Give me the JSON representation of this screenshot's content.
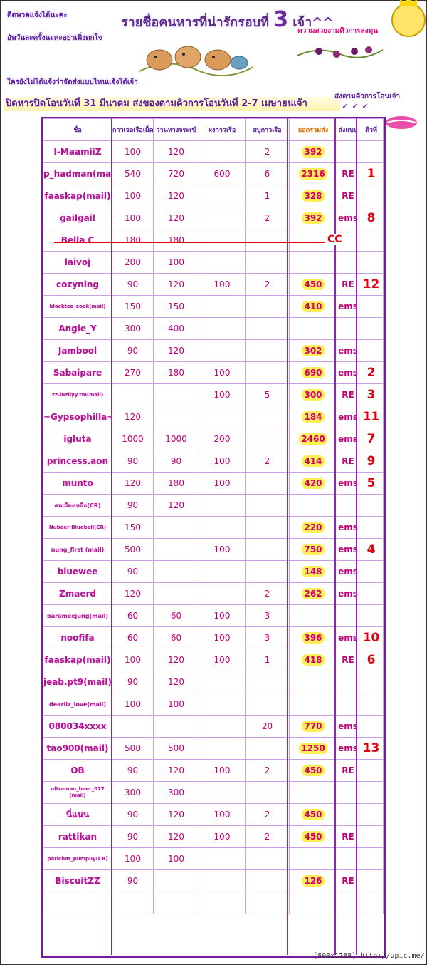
{
  "notes": {
    "line1": "ติดพวดแจ้งได้นะคะ",
    "line2": "อัพวันละครั้งนะคะอย่าเพิ่งตกใจ",
    "line3": "ใครยังไม่ได้แจ้งว่าจัดส่งแบบไหนแจ้งได้เจ้า"
  },
  "title": {
    "pre": "รายชื่อคนหารที่น่ารักรอบที่",
    "num": "3",
    "post": "เจ้า^^"
  },
  "contest_label": "ความสวยงามคิวการลงทุน",
  "contest_label2": "ส่งตามคิวการโอนเจ้า",
  "checkmarks": "✓✓✓",
  "banner": "ปิดหารปิดโอนวันที่ 31 มีนาคม ส่งของตามคิวการโอนวันที่ 2-7 เมษายนเจ้า",
  "headers": [
    "ชื่อ",
    "กาวเจลเรือเม็ด",
    "ว่านหางจระเข้",
    "ผงกาวเรือ",
    "สบู่กาวเรือ",
    "ยอดรวมส่ง",
    "ส่งแบบ",
    "คิวที่"
  ],
  "rows": [
    {
      "name": "I-MaamiiZ",
      "c1": "100",
      "c2": "120",
      "c3": "",
      "c4": "2",
      "total": "392",
      "ship": "",
      "rank": ""
    },
    {
      "name": "p_hadman(mail)",
      "c1": "540",
      "c2": "720",
      "c3": "600",
      "c4": "6",
      "total": "2316",
      "ship": "RE",
      "rank": "1"
    },
    {
      "name": "faaskap(mail)",
      "c1": "100",
      "c2": "120",
      "c3": "",
      "c4": "1",
      "total": "328",
      "ship": "RE",
      "rank": ""
    },
    {
      "name": "gailgail",
      "c1": "100",
      "c2": "120",
      "c3": "",
      "c4": "2",
      "total": "392",
      "ship": "ems",
      "rank": "8"
    },
    {
      "name": "Bella C",
      "c1": "180",
      "c2": "180",
      "c3": "",
      "c4": "",
      "total": "",
      "ship": "",
      "rank": ""
    },
    {
      "name": "laivoj",
      "c1": "200",
      "c2": "100",
      "c3": "",
      "c4": "",
      "total": "",
      "ship": "",
      "rank": ""
    },
    {
      "name": "cozyning",
      "c1": "90",
      "c2": "120",
      "c3": "100",
      "c4": "2",
      "total": "450",
      "ship": "RE",
      "rank": "12"
    },
    {
      "name": "blacktea_cook(mail)",
      "c1": "150",
      "c2": "150",
      "c3": "",
      "c4": "",
      "total": "410",
      "ship": "ems",
      "rank": ""
    },
    {
      "name": "Angle_Y",
      "c1": "300",
      "c2": "400",
      "c3": "",
      "c4": "",
      "total": "",
      "ship": "",
      "rank": ""
    },
    {
      "name": "Jambool",
      "c1": "90",
      "c2": "120",
      "c3": "",
      "c4": "",
      "total": "302",
      "ship": "ems",
      "rank": ""
    },
    {
      "name": "Sabaipare",
      "c1": "270",
      "c2": "180",
      "c3": "100",
      "c4": "",
      "total": "690",
      "ship": "ems",
      "rank": "2"
    },
    {
      "name": "zz-luziiyy.tm(mail)",
      "c1": "",
      "c2": "",
      "c3": "100",
      "c4": "5",
      "total": "300",
      "ship": "RE",
      "rank": "3"
    },
    {
      "name": "~Gypsophilla~",
      "c1": "120",
      "c2": "",
      "c3": "",
      "c4": "",
      "total": "184",
      "ship": "ems",
      "rank": "11"
    },
    {
      "name": "igluta",
      "c1": "1000",
      "c2": "1000",
      "c3": "200",
      "c4": "",
      "total": "2460",
      "ship": "ems",
      "rank": "7"
    },
    {
      "name": "princess.aon",
      "c1": "90",
      "c2": "90",
      "c3": "100",
      "c4": "2",
      "total": "414",
      "ship": "RE",
      "rank": "9"
    },
    {
      "name": "munto",
      "c1": "120",
      "c2": "180",
      "c3": "100",
      "c4": "",
      "total": "420",
      "ship": "ems",
      "rank": "5"
    },
    {
      "name": "คนเมืองเหนือ(CR)",
      "c1": "90",
      "c2": "120",
      "c3": "",
      "c4": "",
      "total": "",
      "ship": "",
      "rank": ""
    },
    {
      "name": "Nubeer Bluebell(CR)",
      "c1": "150",
      "c2": "",
      "c3": "",
      "c4": "",
      "total": "220",
      "ship": "ems",
      "rank": ""
    },
    {
      "name": "nung_first (mail)",
      "c1": "500",
      "c2": "",
      "c3": "100",
      "c4": "",
      "total": "750",
      "ship": "ems",
      "rank": "4"
    },
    {
      "name": "bluewee",
      "c1": "90",
      "c2": "",
      "c3": "",
      "c4": "",
      "total": "148",
      "ship": "ems",
      "rank": ""
    },
    {
      "name": "Zmaerd",
      "c1": "120",
      "c2": "",
      "c3": "",
      "c4": "2",
      "total": "262",
      "ship": "ems",
      "rank": ""
    },
    {
      "name": "barameejung(mail)",
      "c1": "60",
      "c2": "60",
      "c3": "100",
      "c4": "3",
      "total": "",
      "ship": "",
      "rank": ""
    },
    {
      "name": "noofifa",
      "c1": "60",
      "c2": "60",
      "c3": "100",
      "c4": "3",
      "total": "396",
      "ship": "ems",
      "rank": "10"
    },
    {
      "name": "faaskap(mail)",
      "c1": "100",
      "c2": "120",
      "c3": "100",
      "c4": "1",
      "total": "418",
      "ship": "RE",
      "rank": "6"
    },
    {
      "name": "jeab.pt9(mail)",
      "c1": "90",
      "c2": "120",
      "c3": "",
      "c4": "",
      "total": "",
      "ship": "",
      "rank": ""
    },
    {
      "name": "deariiz_love(mail)",
      "c1": "100",
      "c2": "100",
      "c3": "",
      "c4": "",
      "total": "",
      "ship": "",
      "rank": ""
    },
    {
      "name": "080034xxxx",
      "c1": "",
      "c2": "",
      "c3": "",
      "c4": "20",
      "total": "770",
      "ship": "ems",
      "rank": ""
    },
    {
      "name": "tao900(mail)",
      "c1": "500",
      "c2": "500",
      "c3": "",
      "c4": "",
      "total": "1250",
      "ship": "ems",
      "rank": "13"
    },
    {
      "name": "OB",
      "c1": "90",
      "c2": "120",
      "c3": "100",
      "c4": "2",
      "total": "450",
      "ship": "RE",
      "rank": ""
    },
    {
      "name": "ultraman_beer_017 (mail)",
      "c1": "300",
      "c2": "300",
      "c3": "",
      "c4": "",
      "total": "",
      "ship": "",
      "rank": ""
    },
    {
      "name": "นี่แนน",
      "c1": "90",
      "c2": "120",
      "c3": "100",
      "c4": "2",
      "total": "450",
      "ship": "",
      "rank": ""
    },
    {
      "name": "rattikan",
      "c1": "90",
      "c2": "120",
      "c3": "100",
      "c4": "2",
      "total": "450",
      "ship": "RE",
      "rank": ""
    },
    {
      "name": "parichat_pumpuy(CR)",
      "c1": "100",
      "c2": "100",
      "c3": "",
      "c4": "",
      "total": "",
      "ship": "",
      "rank": ""
    },
    {
      "name": "BiscuitZZ",
      "c1": "90",
      "c2": "",
      "c3": "",
      "c4": "",
      "total": "126",
      "ship": "RE",
      "rank": ""
    },
    {
      "name": "",
      "c1": "",
      "c2": "",
      "c3": "",
      "c4": "",
      "total": "",
      "ship": "",
      "rank": ""
    }
  ],
  "cancel_mark": "CC",
  "footer": "[800x1788] http://upic.me/"
}
